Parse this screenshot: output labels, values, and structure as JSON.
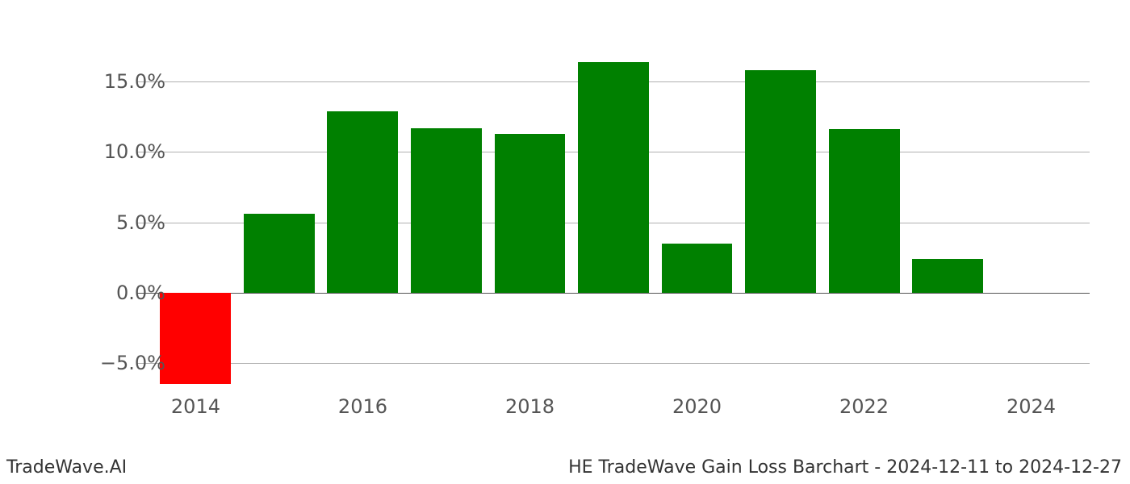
{
  "chart": {
    "type": "bar",
    "years": [
      2014,
      2015,
      2016,
      2017,
      2018,
      2019,
      2020,
      2021,
      2022,
      2023
    ],
    "values": [
      -6.5,
      5.6,
      12.9,
      11.7,
      11.3,
      16.4,
      3.5,
      15.8,
      11.6,
      2.4
    ],
    "bar_colors": [
      "#ff0000",
      "#008000",
      "#008000",
      "#008000",
      "#008000",
      "#008000",
      "#008000",
      "#008000",
      "#008000",
      "#008000"
    ],
    "y_ticks": [
      -5,
      0,
      5,
      10,
      15
    ],
    "y_tick_labels": [
      "−5.0%",
      "0.0%",
      "5.0%",
      "10.0%",
      "15.0%"
    ],
    "x_ticks": [
      2014,
      2016,
      2018,
      2020,
      2022,
      2024
    ],
    "x_tick_labels": [
      "2014",
      "2016",
      "2018",
      "2020",
      "2022",
      "2024"
    ],
    "y_min": -9.0,
    "y_max": 18.5,
    "x_min": 2013.3,
    "x_max": 2024.7,
    "bar_width_years": 0.85,
    "background_color": "#ffffff",
    "grid_color": "#b0b0b0",
    "axis_label_color": "#555555",
    "axis_label_fontsize": 24,
    "footer_fontsize": 22,
    "footer_color": "#333333"
  },
  "footer": {
    "left": "TradeWave.AI",
    "right": "HE TradeWave Gain Loss Barchart - 2024-12-11 to 2024-12-27"
  }
}
